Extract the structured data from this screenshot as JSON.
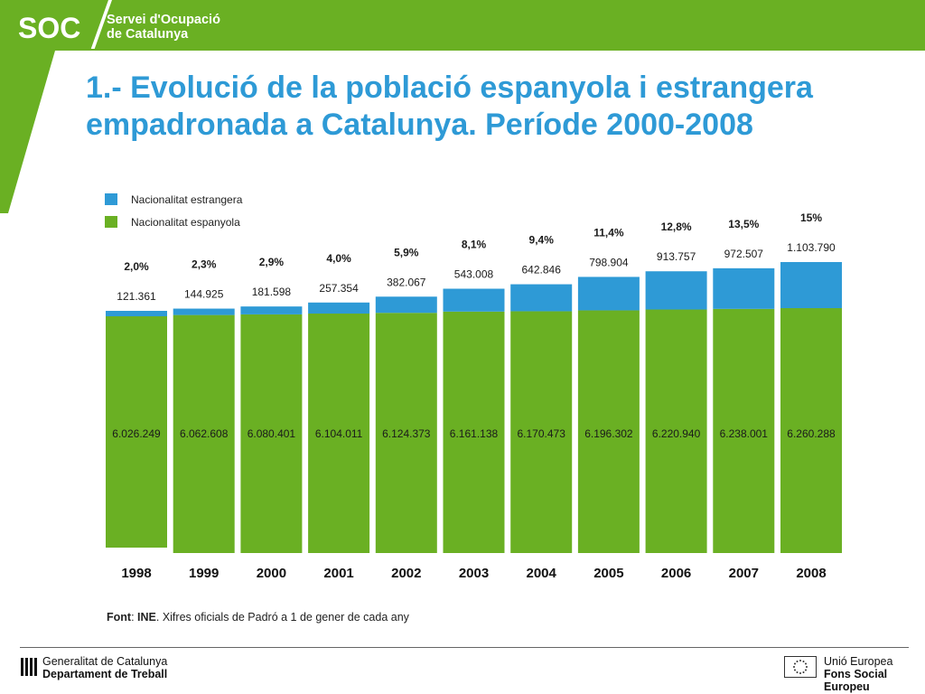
{
  "header": {
    "logo_text": "SOC",
    "org_line1": "Servei d'Ocupació",
    "org_line2": "de Catalunya",
    "bar_color": "#6ab023"
  },
  "title": {
    "line1": "1.- Evolució de la població espanyola i estrangera",
    "line2": "empadronada a Catalunya. Període 2000-2008"
  },
  "chart_data": {
    "type": "bar",
    "stacked": true,
    "categories": [
      "1998",
      "1999",
      "2000",
      "2001",
      "2002",
      "2003",
      "2004",
      "2005",
      "2006",
      "2007",
      "2008"
    ],
    "series": [
      {
        "name": "Nacionalitat espanyola",
        "color": "#6ab023",
        "values": [
          6026249,
          6062608,
          6080401,
          6104011,
          6124373,
          6161138,
          6170473,
          6196302,
          6220940,
          6238001,
          6260288
        ],
        "labels": [
          "6.026.249",
          "6.062.608",
          "6.080.401",
          "6.104.011",
          "6.124.373",
          "6.161.138",
          "6.170.473",
          "6.196.302",
          "6.220.940",
          "6.238.001",
          "6.260.288"
        ]
      },
      {
        "name": "Nacionalitat estrangera",
        "color": "#2e9ad6",
        "values": [
          121361,
          144925,
          181598,
          257354,
          382067,
          543008,
          642846,
          798904,
          913757,
          972507,
          1103790
        ],
        "labels": [
          "121.361",
          "144.925",
          "181.598",
          "257.354",
          "382.067",
          "543.008",
          "642.846",
          "798.904",
          "913.757",
          "972.507",
          "1.103.790"
        ]
      }
    ],
    "percent_labels": [
      "2,0%",
      "2,3%",
      "2,9%",
      "4,0%",
      "5,9%",
      "8,1%",
      "9,4%",
      "11,4%",
      "12,8%",
      "13,5%",
      "15%"
    ],
    "legend": [
      {
        "label": "Nacionalitat estrangera",
        "color": "#2e9ad6"
      },
      {
        "label": "Nacionalitat espanyola",
        "color": "#6ab023"
      }
    ],
    "legend_position": "top-left",
    "y_axis_visible": false,
    "grid": false
  },
  "source": {
    "prefix": "Font",
    "org": "INE",
    "text": ". Xifres oficials de Padró a 1 de gener de cada any"
  },
  "footer": {
    "gen_line1": "Generalitat de Catalunya",
    "gen_line2": "Departament de Treball",
    "eu_line1": "Unió Europea",
    "eu_line2": "Fons Social Europeu"
  }
}
